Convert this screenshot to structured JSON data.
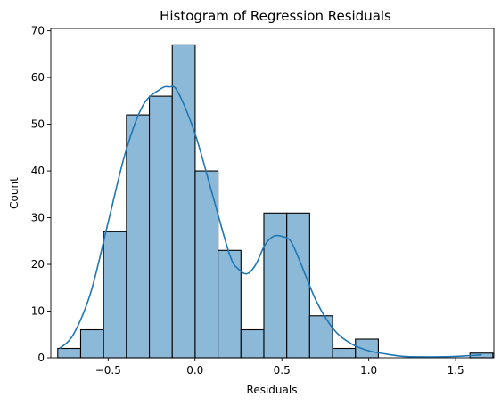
{
  "chart_data": {
    "type": "bar",
    "title": "Histogram of Regression Residuals",
    "xlabel": "Residuals",
    "ylabel": "Count",
    "xlim": [
      -0.83,
      1.72
    ],
    "ylim": [
      0,
      70.5
    ],
    "xticks": [
      -0.5,
      0.0,
      0.5,
      1.0,
      1.5
    ],
    "xtick_labels": [
      "−0.5",
      "0.0",
      "0.5",
      "1.0",
      "1.5"
    ],
    "yticks": [
      0,
      10,
      20,
      30,
      40,
      50,
      60,
      70
    ],
    "ytick_labels": [
      "0",
      "10",
      "20",
      "30",
      "40",
      "50",
      "60",
      "70"
    ],
    "bin_start": -0.79,
    "bin_width": 0.1318,
    "counts": [
      2,
      6,
      27,
      52,
      56,
      67,
      40,
      23,
      6,
      31,
      31,
      9,
      2,
      4,
      0,
      0,
      0,
      0,
      1
    ],
    "bar_color": "#8db9d9",
    "edge_color": "#000000",
    "kde_color": "#1f77b4",
    "kde": {
      "x": [
        -0.78,
        -0.7,
        -0.6,
        -0.5,
        -0.4,
        -0.3,
        -0.2,
        -0.15,
        -0.1,
        0.0,
        0.1,
        0.2,
        0.25,
        0.3,
        0.35,
        0.4,
        0.45,
        0.5,
        0.55,
        0.6,
        0.7,
        0.8,
        0.9,
        1.0,
        1.1,
        1.2,
        1.3,
        1.4,
        1.5,
        1.6,
        1.65
      ],
      "y": [
        2,
        5,
        14,
        29,
        44,
        54,
        57.5,
        58,
        57,
        48,
        35,
        22,
        19,
        18,
        20,
        24,
        26,
        26,
        25,
        21,
        12,
        6,
        3,
        1.5,
        0.8,
        0.3,
        0.2,
        0.2,
        0.3,
        0.5,
        0.6
      ]
    }
  }
}
